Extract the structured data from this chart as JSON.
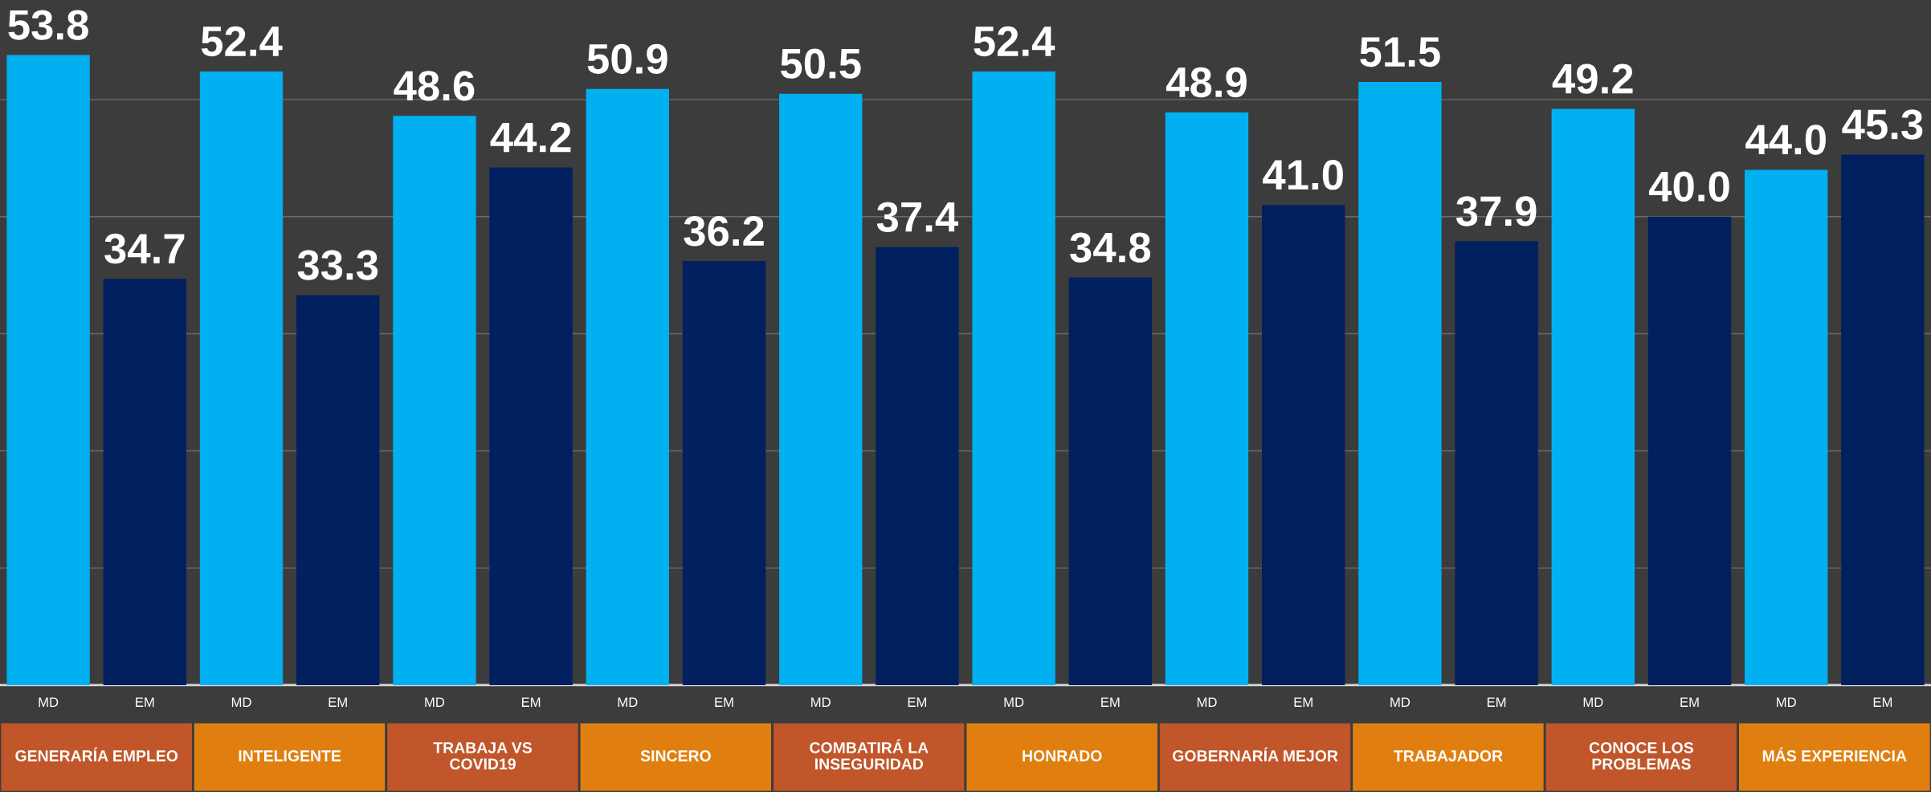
{
  "chart_data": {
    "type": "bar",
    "categories": [
      "GENERARÍA EMPLEO",
      "INTELIGENTE",
      "TRABAJA VS\nCOVID19",
      "SINCERO",
      "COMBATIRÁ LA\nINSEGURIDAD",
      "HONRADO",
      "GOBERNARÍA MEJOR",
      "TRABAJADOR",
      "CONOCE LOS\nPROBLEMAS",
      "MÁS EXPERIENCIA"
    ],
    "series": [
      {
        "name": "MD",
        "color": "#00b0f0",
        "values": [
          53.8,
          52.4,
          48.6,
          50.9,
          50.5,
          52.4,
          48.9,
          51.5,
          49.2,
          44.0
        ],
        "value_labels": [
          "53.8",
          "52.4",
          "48.6",
          "50.9",
          "50.5",
          "52.4",
          "48.9",
          "51.5",
          "49.2",
          "44.0"
        ]
      },
      {
        "name": "EM",
        "color": "#002060",
        "values": [
          34.7,
          33.3,
          44.2,
          36.2,
          37.4,
          34.8,
          41.0,
          37.9,
          40.0,
          45.3
        ],
        "value_labels": [
          "34.7",
          "33.3",
          "44.2",
          "36.2",
          "37.4",
          "34.8",
          "41.0",
          "37.9",
          "40.0",
          "45.3"
        ]
      }
    ],
    "ylim": [
      0,
      58.5
    ],
    "yticks": [
      {
        "value": 0,
        "label": null
      },
      {
        "value": 10,
        "label": null
      },
      {
        "value": 20,
        "label": null
      },
      {
        "value": 30,
        "label": null
      },
      {
        "value": 40,
        "label": null
      },
      {
        "value": 50,
        "label": null
      }
    ],
    "grid": "y",
    "legend": false
  }
}
